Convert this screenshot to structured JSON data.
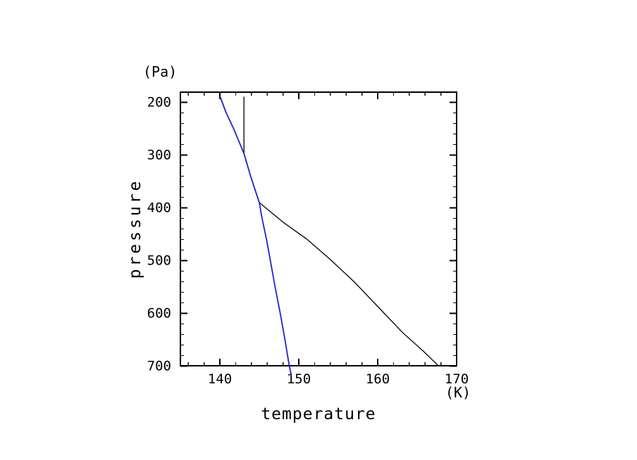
{
  "labels": {
    "y_unit": "(Pa)",
    "y_axis_title": "pressure",
    "x_axis_title": "temperature",
    "x_unit": "(K)"
  },
  "colors": {
    "background": "#ffffff",
    "frame": "#000000",
    "curve_black": "#000000",
    "curve_blue": "#2222cc"
  },
  "chart_data": {
    "type": "line",
    "title": "",
    "xlabel": "temperature",
    "x_unit": "K",
    "ylabel": "pressure",
    "y_unit": "Pa",
    "xlim": [
      135,
      170
    ],
    "ylim": [
      180,
      700
    ],
    "y_axis_inverted": true,
    "grid": false,
    "legend_position": "none",
    "x_major_ticks": [
      140,
      150,
      160,
      170
    ],
    "x_minor_tick_step": 2,
    "y_major_ticks": [
      200,
      300,
      400,
      500,
      600,
      700
    ],
    "y_minor_tick_step": 20,
    "series": [
      {
        "name": "black-temperature-profile",
        "color": "#000000",
        "points_T_p": [
          [
            143.05,
            190
          ],
          [
            143.05,
            297
          ],
          [
            143.9,
            340
          ],
          [
            144.45,
            365
          ],
          [
            145.0,
            390
          ],
          [
            148.0,
            427
          ],
          [
            151.0,
            459
          ],
          [
            154.0,
            498
          ],
          [
            157.0,
            540
          ],
          [
            160.2,
            590
          ],
          [
            163.2,
            637
          ],
          [
            165.8,
            672
          ],
          [
            167.6,
            698
          ]
        ]
      },
      {
        "name": "blue-temperature-profile",
        "color": "#2222cc",
        "points_T_p": [
          [
            140.05,
            190
          ],
          [
            140.8,
            220
          ],
          [
            141.75,
            250
          ],
          [
            142.45,
            275
          ],
          [
            143.05,
            297
          ],
          [
            143.9,
            340
          ],
          [
            144.45,
            365
          ],
          [
            145.0,
            390
          ],
          [
            145.35,
            420
          ],
          [
            145.9,
            459
          ],
          [
            146.4,
            500
          ],
          [
            147.0,
            550
          ],
          [
            147.65,
            600
          ],
          [
            148.25,
            650
          ],
          [
            148.8,
            700
          ],
          [
            149.05,
            717
          ]
        ]
      }
    ]
  }
}
